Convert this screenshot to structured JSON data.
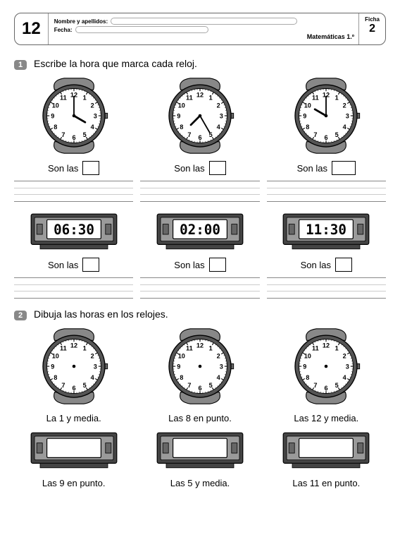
{
  "header": {
    "page_num": "12",
    "name_label": "Nombre y apellidos:",
    "date_label": "Fecha:",
    "subject": "Matemáticas 1.º",
    "ficha_label": "Ficha",
    "ficha_num": "2"
  },
  "q1": {
    "num": "1",
    "text": "Escribe la hora que marca cada reloj.",
    "answer_label": "Son las",
    "watches": [
      {
        "hour_angle": 120,
        "minute_angle": 0
      },
      {
        "hour_angle": 225,
        "minute_angle": 150
      },
      {
        "hour_angle": 300,
        "minute_angle": 0
      }
    ],
    "digitals": [
      {
        "time": "06:30"
      },
      {
        "time": "02:00"
      },
      {
        "time": "11:30"
      }
    ]
  },
  "q2": {
    "num": "2",
    "text": "Dibuja las horas en los relojes.",
    "watch_captions": [
      "La 1 y media.",
      "Las 8 en punto.",
      "Las 12 y media."
    ],
    "digital_captions": [
      "Las 9 en punto.",
      "Las 5 y media.",
      "Las 11 en punto."
    ]
  },
  "style": {
    "watch_frame": "#555555",
    "watch_face": "#ffffff",
    "watch_band": "#888888",
    "number_color": "#000000",
    "hand_color": "#000000",
    "digital_frame": "#444444",
    "digital_body": "#9a9a9a",
    "digital_screen_bg": "#ffffff",
    "digital_text": "#000000",
    "q_badge_bg": "#888888"
  }
}
